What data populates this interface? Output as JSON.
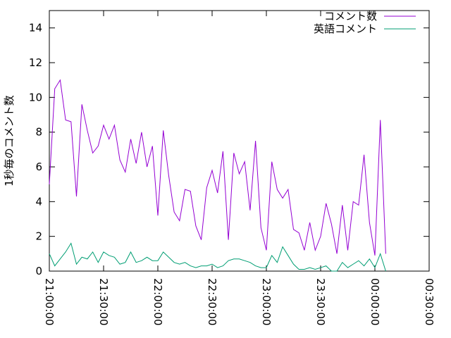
{
  "chart_data": {
    "type": "line",
    "y_label": "1秒毎のコメント数",
    "x": [
      "21:00:00",
      "21:03:00",
      "21:06:00",
      "21:09:00",
      "21:12:00",
      "21:15:00",
      "21:18:00",
      "21:21:00",
      "21:24:00",
      "21:27:00",
      "21:30:00",
      "21:33:00",
      "21:36:00",
      "21:39:00",
      "21:42:00",
      "21:45:00",
      "21:48:00",
      "21:51:00",
      "21:54:00",
      "21:57:00",
      "22:00:00",
      "22:03:00",
      "22:06:00",
      "22:09:00",
      "22:12:00",
      "22:15:00",
      "22:18:00",
      "22:21:00",
      "22:24:00",
      "22:27:00",
      "22:30:00",
      "22:33:00",
      "22:36:00",
      "22:39:00",
      "22:42:00",
      "22:45:00",
      "22:48:00",
      "22:51:00",
      "22:54:00",
      "22:57:00",
      "23:00:00",
      "23:03:00",
      "23:06:00",
      "23:09:00",
      "23:12:00",
      "23:15:00",
      "23:18:00",
      "23:21:00",
      "23:24:00",
      "23:27:00",
      "23:30:00",
      "23:33:00",
      "23:36:00",
      "23:39:00",
      "23:42:00",
      "23:45:00",
      "23:48:00",
      "23:51:00",
      "23:54:00",
      "23:57:00",
      "00:00:00",
      "00:03:00",
      "00:06:00"
    ],
    "series": [
      {
        "name": "コメント数",
        "color": "#9400d3",
        "values": [
          5.0,
          10.5,
          11.0,
          8.7,
          8.6,
          4.3,
          9.6,
          8.1,
          6.8,
          7.2,
          8.4,
          7.6,
          8.4,
          6.4,
          5.7,
          7.6,
          6.2,
          8.0,
          6.0,
          7.2,
          3.2,
          8.1,
          5.5,
          3.4,
          2.9,
          4.7,
          4.6,
          2.6,
          1.8,
          4.8,
          5.8,
          4.5,
          6.9,
          1.8,
          6.8,
          5.6,
          6.3,
          3.5,
          7.5,
          2.5,
          1.2,
          6.3,
          4.7,
          4.2,
          4.7,
          2.4,
          2.2,
          1.2,
          2.8,
          1.2,
          2.0,
          3.9,
          2.7,
          1.0,
          3.8,
          1.2,
          4.0,
          3.8,
          6.7,
          2.8,
          0.9,
          8.7,
          1.0
        ]
      },
      {
        "name": "英語コメント",
        "color": "#009e73",
        "values": [
          1.0,
          0.3,
          0.7,
          1.1,
          1.6,
          0.4,
          0.8,
          0.7,
          1.1,
          0.5,
          1.1,
          0.9,
          0.8,
          0.4,
          0.5,
          1.1,
          0.5,
          0.6,
          0.8,
          0.6,
          0.6,
          1.1,
          0.8,
          0.5,
          0.4,
          0.5,
          0.3,
          0.2,
          0.3,
          0.3,
          0.4,
          0.2,
          0.3,
          0.6,
          0.7,
          0.7,
          0.6,
          0.5,
          0.3,
          0.2,
          0.2,
          0.9,
          0.5,
          1.4,
          0.9,
          0.4,
          0.1,
          0.1,
          0.2,
          0.1,
          0.2,
          0.3,
          0.0,
          0.0,
          0.5,
          0.2,
          0.4,
          0.6,
          0.3,
          0.7,
          0.2,
          1.0,
          0.0
        ]
      }
    ],
    "xlim": [
      "21:00:00",
      "00:30:00"
    ],
    "xticks": [
      "21:00:00",
      "21:30:00",
      "22:00:00",
      "22:30:00",
      "23:00:00",
      "23:30:00",
      "00:00:00",
      "00:30:00"
    ],
    "ylim": [
      0,
      15
    ],
    "yticks": [
      0,
      2,
      4,
      6,
      8,
      10,
      12,
      14
    ],
    "legend": "top-right"
  }
}
